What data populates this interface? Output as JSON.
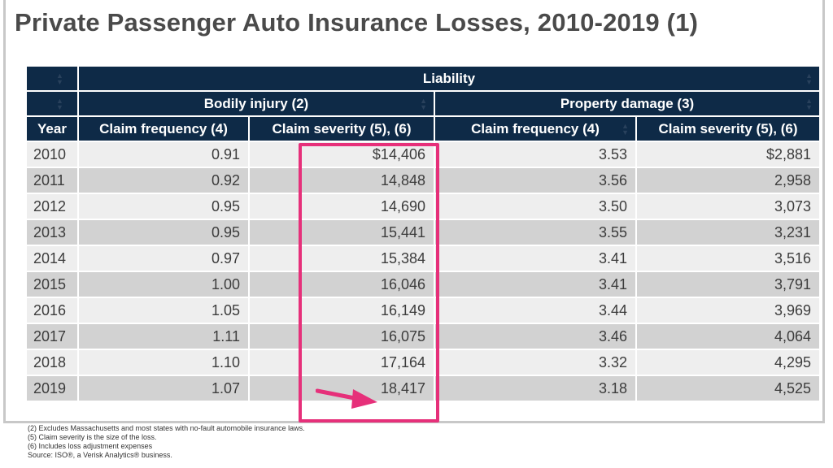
{
  "title": "Private Passenger Auto Insurance Losses, 2010-2019 (1)",
  "header": {
    "liability": "Liability",
    "bodily_injury": "Bodily injury (2)",
    "property_damage": "Property damage (3)",
    "year": "Year",
    "bi_claim_frequency": "Claim frequency (4)",
    "bi_claim_severity": "Claim severity (5), (6)",
    "pd_claim_frequency": "Claim frequency (4)",
    "pd_claim_severity": "Claim severity (5), (6)"
  },
  "rows": [
    {
      "year": "2010",
      "bi_freq": "0.91",
      "bi_sev": "$14,406",
      "pd_freq": "3.53",
      "pd_sev": "$2,881"
    },
    {
      "year": "2011",
      "bi_freq": "0.92",
      "bi_sev": "14,848",
      "pd_freq": "3.56",
      "pd_sev": "2,958"
    },
    {
      "year": "2012",
      "bi_freq": "0.95",
      "bi_sev": "14,690",
      "pd_freq": "3.50",
      "pd_sev": "3,073"
    },
    {
      "year": "2013",
      "bi_freq": "0.95",
      "bi_sev": "15,441",
      "pd_freq": "3.55",
      "pd_sev": "3,231"
    },
    {
      "year": "2014",
      "bi_freq": "0.97",
      "bi_sev": "15,384",
      "pd_freq": "3.41",
      "pd_sev": "3,516"
    },
    {
      "year": "2015",
      "bi_freq": "1.00",
      "bi_sev": "16,046",
      "pd_freq": "3.41",
      "pd_sev": "3,791"
    },
    {
      "year": "2016",
      "bi_freq": "1.05",
      "bi_sev": "16,149",
      "pd_freq": "3.44",
      "pd_sev": "3,969"
    },
    {
      "year": "2017",
      "bi_freq": "1.11",
      "bi_sev": "16,075",
      "pd_freq": "3.46",
      "pd_sev": "4,064"
    },
    {
      "year": "2018",
      "bi_freq": "1.10",
      "bi_sev": "17,164",
      "pd_freq": "3.32",
      "pd_sev": "4,295"
    },
    {
      "year": "2019",
      "bi_freq": "1.07",
      "bi_sev": "18,417",
      "pd_freq": "3.18",
      "pd_sev": "4,525"
    }
  ],
  "footnotes": [
    "(2) Excludes Massachusetts and most states with no-fault automobile insurance laws.",
    "(5) Claim severity is the size of the loss.",
    "(6) Includes loss adjustment expenses",
    "Source: ISO®, a Verisk Analytics® business."
  ],
  "colors": {
    "header_bg": "#0e2a47",
    "row_light": "#eeeeee",
    "row_dark": "#d2d2d2",
    "highlight": "#e6307a"
  },
  "icons": {
    "sort": "sort-arrows-icon",
    "annotation_arrow": "arrow-right-icon"
  }
}
